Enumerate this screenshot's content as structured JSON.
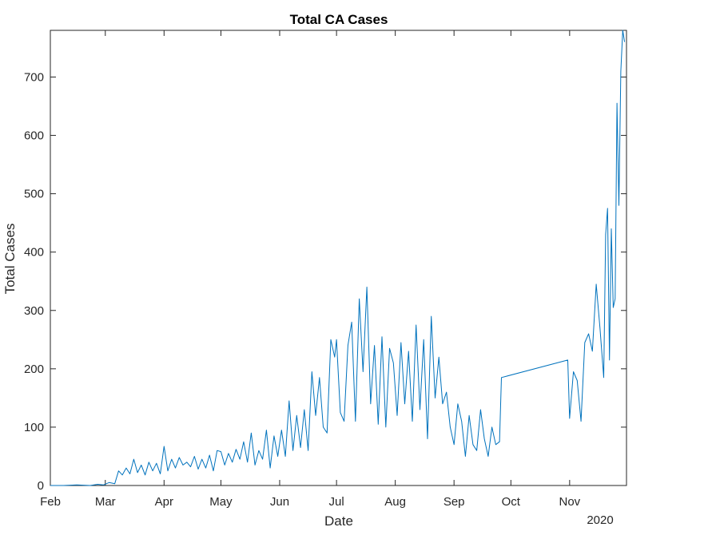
{
  "chart_data": {
    "type": "line",
    "title": "Total CA Cases",
    "xlabel": "Date",
    "ylabel": "Total Cases",
    "x_year_label": "2020",
    "x_ticks": [
      "Feb",
      "Mar",
      "Apr",
      "May",
      "Jun",
      "Jul",
      "Aug",
      "Sep",
      "Oct",
      "Nov"
    ],
    "x_tick_dates": [
      "2020-02-01",
      "2020-03-01",
      "2020-04-01",
      "2020-05-01",
      "2020-06-01",
      "2020-07-01",
      "2020-08-01",
      "2020-09-01",
      "2020-10-01",
      "2020-11-01"
    ],
    "xlim": [
      "2020-02-01",
      "2020-11-30"
    ],
    "ylim": [
      0,
      780
    ],
    "y_ticks": [
      0,
      100,
      200,
      300,
      400,
      500,
      600,
      700
    ],
    "grid": false,
    "line_color": "#0072bd",
    "series": [
      {
        "x": [
          "2020-02-01",
          "2020-02-08",
          "2020-02-15",
          "2020-02-22",
          "2020-02-26",
          "2020-02-29",
          "2020-03-03",
          "2020-03-06",
          "2020-03-08",
          "2020-03-10",
          "2020-03-12",
          "2020-03-14",
          "2020-03-16",
          "2020-03-18",
          "2020-03-20",
          "2020-03-22",
          "2020-03-24",
          "2020-03-26",
          "2020-03-28",
          "2020-03-30",
          "2020-04-01",
          "2020-04-03",
          "2020-04-05",
          "2020-04-07",
          "2020-04-09",
          "2020-04-11",
          "2020-04-13",
          "2020-04-15",
          "2020-04-17",
          "2020-04-19",
          "2020-04-21",
          "2020-04-23",
          "2020-04-25",
          "2020-04-27",
          "2020-04-29",
          "2020-05-01",
          "2020-05-03",
          "2020-05-05",
          "2020-05-07",
          "2020-05-09",
          "2020-05-11",
          "2020-05-13",
          "2020-05-15",
          "2020-05-17",
          "2020-05-19",
          "2020-05-21",
          "2020-05-23",
          "2020-05-25",
          "2020-05-27",
          "2020-05-29",
          "2020-05-31",
          "2020-06-02",
          "2020-06-04",
          "2020-06-06",
          "2020-06-08",
          "2020-06-10",
          "2020-06-12",
          "2020-06-14",
          "2020-06-16",
          "2020-06-18",
          "2020-06-20",
          "2020-06-22",
          "2020-06-24",
          "2020-06-26",
          "2020-06-28",
          "2020-06-30",
          "2020-07-01",
          "2020-07-03",
          "2020-07-05",
          "2020-07-07",
          "2020-07-09",
          "2020-07-11",
          "2020-07-13",
          "2020-07-15",
          "2020-07-17",
          "2020-07-19",
          "2020-07-21",
          "2020-07-23",
          "2020-07-25",
          "2020-07-27",
          "2020-07-29",
          "2020-07-31",
          "2020-08-02",
          "2020-08-04",
          "2020-08-06",
          "2020-08-08",
          "2020-08-10",
          "2020-08-12",
          "2020-08-14",
          "2020-08-16",
          "2020-08-18",
          "2020-08-20",
          "2020-08-22",
          "2020-08-24",
          "2020-08-26",
          "2020-08-28",
          "2020-08-30",
          "2020-09-01",
          "2020-09-03",
          "2020-09-05",
          "2020-09-07",
          "2020-09-09",
          "2020-09-11",
          "2020-09-13",
          "2020-09-15",
          "2020-09-17",
          "2020-09-19",
          "2020-09-21",
          "2020-09-23",
          "2020-09-25",
          "2020-09-26",
          "2020-10-31",
          "2020-11-01",
          "2020-11-03",
          "2020-11-05",
          "2020-11-07",
          "2020-11-09",
          "2020-11-11",
          "2020-11-13",
          "2020-11-15",
          "2020-11-17",
          "2020-11-19",
          "2020-11-20",
          "2020-11-21",
          "2020-11-22",
          "2020-11-23",
          "2020-11-24",
          "2020-11-25",
          "2020-11-26",
          "2020-11-27",
          "2020-11-28",
          "2020-11-29",
          "2020-11-30"
        ],
        "y": [
          0,
          0,
          1,
          0,
          2,
          1,
          5,
          3,
          25,
          18,
          30,
          20,
          45,
          22,
          35,
          18,
          40,
          25,
          38,
          20,
          67,
          25,
          45,
          30,
          48,
          35,
          40,
          32,
          50,
          28,
          45,
          30,
          52,
          25,
          60,
          58,
          35,
          55,
          40,
          62,
          45,
          75,
          40,
          90,
          35,
          60,
          45,
          95,
          30,
          85,
          50,
          95,
          50,
          145,
          60,
          120,
          65,
          130,
          60,
          195,
          120,
          185,
          100,
          90,
          250,
          220,
          250,
          125,
          110,
          240,
          280,
          110,
          320,
          195,
          340,
          140,
          240,
          105,
          255,
          100,
          235,
          210,
          120,
          245,
          140,
          230,
          110,
          275,
          130,
          250,
          80,
          290,
          150,
          220,
          140,
          160,
          100,
          70,
          140,
          110,
          50,
          120,
          70,
          60,
          130,
          80,
          50,
          100,
          70,
          75,
          185,
          215,
          115,
          195,
          180,
          110,
          245,
          260,
          230,
          345,
          270,
          185,
          430,
          475,
          215,
          440,
          305,
          320,
          655,
          480,
          710,
          780,
          760
        ]
      }
    ]
  }
}
